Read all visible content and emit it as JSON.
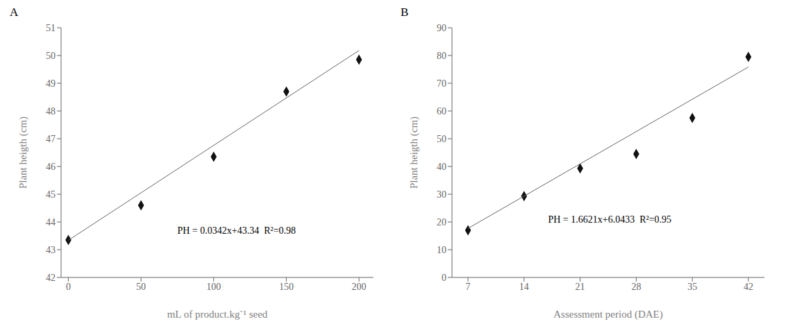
{
  "chart_data": [
    {
      "type": "scatter",
      "title": "A",
      "x_label": "mL of product.kg⁻¹ seed",
      "y_label": "Plant heigth (cm)",
      "xlim": [
        -5,
        210
      ],
      "ylim": [
        42,
        51
      ],
      "xticks": [
        0,
        50,
        100,
        150,
        200
      ],
      "yticks": [
        42,
        43,
        44,
        45,
        46,
        47,
        48,
        49,
        50,
        51
      ],
      "grid": false,
      "series": [
        {
          "type": "scatter",
          "marker": "diamond",
          "color": "#111111",
          "x": [
            0,
            50,
            100,
            150,
            200
          ],
          "values": [
            43.35,
            44.6,
            46.35,
            48.7,
            49.85
          ]
        },
        {
          "type": "line",
          "color": "#666666",
          "x": [
            0,
            200
          ],
          "values": [
            43.34,
            50.18
          ]
        }
      ],
      "annotations": [
        {
          "text": "PH = 0.0342x+43.34  R²=0.98",
          "x": 75,
          "y": 43.5
        }
      ]
    },
    {
      "type": "scatter",
      "title": "B",
      "x_label": "Assessment period (DAE)",
      "y_label": "Plant heigth (cm)",
      "xlim": [
        5,
        44
      ],
      "ylim": [
        0,
        90
      ],
      "xticks": [
        7,
        14,
        21,
        28,
        35,
        42
      ],
      "yticks": [
        0,
        10,
        20,
        30,
        40,
        50,
        60,
        70,
        80,
        90
      ],
      "grid": false,
      "series": [
        {
          "type": "scatter",
          "marker": "diamond",
          "color": "#111111",
          "x": [
            7,
            14,
            21,
            28,
            35,
            42
          ],
          "values": [
            17.0,
            29.3,
            39.3,
            44.5,
            57.5,
            79.5
          ]
        },
        {
          "type": "line",
          "color": "#666666",
          "x": [
            7,
            42
          ],
          "values": [
            17.678,
            75.8515
          ]
        }
      ],
      "annotations": [
        {
          "text": "PH = 1.6621x+6.0433  R²=0.95",
          "x": 17,
          "y": 19
        }
      ]
    }
  ]
}
